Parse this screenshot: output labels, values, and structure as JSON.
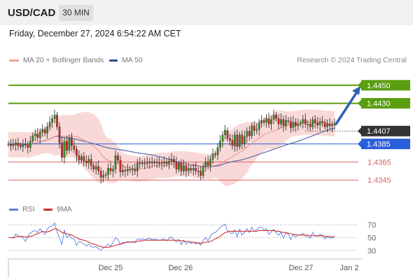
{
  "header": {
    "symbol": "USD/CAD",
    "timeframe": "30 MIN",
    "datetime": "Friday, December 27, 2024 6:54:22 AM CET"
  },
  "legend": {
    "ma20": "MA 20 + Bollinger Bands",
    "ma50": "MA 50",
    "credit": "Research © 2024 Trading Central"
  },
  "rsi_legend": {
    "rsi": "RSI",
    "ma9": "9MA"
  },
  "colors": {
    "resistance": "#5a9e0f",
    "current": "#333333",
    "pivot": "#2b5fd9",
    "support": "#e06060",
    "candle_up": "#3a8a1e",
    "candle_down": "#c62828",
    "ma50": "#5a6aa8",
    "bollinger": "#f7c9c6",
    "rsi": "#5b7fe0",
    "rsi_ma": "#d32f2f"
  },
  "chart_data": [
    {
      "type": "candlestick",
      "title": "USD/CAD",
      "timeframe": "30 MIN",
      "ylim": [
        1.4325,
        1.447
      ],
      "x_ticks": [
        "Dec 25",
        "Dec 26",
        "Dec 27",
        "Jan 2"
      ],
      "levels": [
        {
          "label": "1.4450",
          "value": 1.445,
          "kind": "resistance",
          "style": "box"
        },
        {
          "label": "1.4430",
          "value": 1.443,
          "kind": "resistance",
          "style": "box"
        },
        {
          "label": "1.4407",
          "value": 1.4407,
          "kind": "current",
          "style": "box"
        },
        {
          "label": "1.4385",
          "value": 1.4385,
          "kind": "pivot",
          "style": "box"
        },
        {
          "label": "1.4365",
          "value": 1.4365,
          "kind": "support",
          "style": "text"
        },
        {
          "label": "1.4345",
          "value": 1.4345,
          "kind": "support",
          "style": "text"
        }
      ],
      "forecast_arrow": {
        "from": 1.4407,
        "to": 1.445
      },
      "close": [
        1.4385,
        1.4383,
        1.4384,
        1.4386,
        1.4383,
        1.4382,
        1.4385,
        1.4384,
        1.4381,
        1.4388,
        1.4394,
        1.4396,
        1.4392,
        1.4398,
        1.4401,
        1.4397,
        1.4404,
        1.4409,
        1.4413,
        1.4417,
        1.4404,
        1.4386,
        1.437,
        1.4388,
        1.4378,
        1.4392,
        1.4383,
        1.4379,
        1.4372,
        1.4367,
        1.4371,
        1.4366,
        1.4364,
        1.4368,
        1.4361,
        1.4357,
        1.436,
        1.4355,
        1.4348,
        1.435,
        1.4351,
        1.4358,
        1.4355,
        1.4357,
        1.4372,
        1.4367,
        1.4354,
        1.4356,
        1.4355,
        1.4357,
        1.4356,
        1.4357,
        1.4355,
        1.4364,
        1.4363,
        1.4364,
        1.4363,
        1.4364,
        1.4365,
        1.4364,
        1.4365,
        1.4364,
        1.4363,
        1.4364,
        1.4365,
        1.4363,
        1.4366,
        1.4368,
        1.4365,
        1.4357,
        1.4363,
        1.4355,
        1.4361,
        1.4355,
        1.4358,
        1.4356,
        1.4358,
        1.4355,
        1.4355,
        1.435,
        1.436,
        1.4365,
        1.4361,
        1.4368,
        1.4374,
        1.4373,
        1.4381,
        1.4388,
        1.4395,
        1.44,
        1.4391,
        1.4389,
        1.4383,
        1.4395,
        1.4382,
        1.4395,
        1.4385,
        1.4393,
        1.4399,
        1.4394,
        1.4405,
        1.44,
        1.4401,
        1.4408,
        1.4411,
        1.4409,
        1.4413,
        1.4407,
        1.4412,
        1.4417,
        1.4413,
        1.4407,
        1.4412,
        1.4405,
        1.4411,
        1.441,
        1.4403,
        1.4409,
        1.4405,
        1.4407,
        1.4408,
        1.4412,
        1.4407,
        1.4407,
        1.4404,
        1.4412,
        1.4408,
        1.4406,
        1.441,
        1.4409,
        1.4404,
        1.4407,
        1.4405,
        1.4406,
        1.4407
      ],
      "indicators": [
        "MA 20 + Bollinger Bands",
        "MA 50"
      ]
    },
    {
      "type": "line",
      "title": "RSI",
      "ylim": [
        20,
        80
      ],
      "y_ticks": [
        70,
        50,
        30
      ],
      "series": [
        {
          "name": "RSI",
          "values": [
            50,
            50,
            49,
            56,
            53,
            51,
            50,
            44,
            52,
            57,
            60,
            61,
            58,
            64,
            59,
            55,
            64,
            67,
            68,
            73,
            58,
            50,
            39,
            62,
            50,
            54,
            49,
            48,
            38,
            44,
            43,
            40,
            37,
            40,
            36,
            35,
            36,
            33,
            30,
            34,
            36,
            40,
            37,
            42,
            50,
            47,
            39,
            43,
            42,
            44,
            43,
            44,
            42,
            48,
            47,
            48,
            47,
            48,
            49,
            47,
            48,
            47,
            46,
            47,
            48,
            45,
            49,
            51,
            47,
            43,
            47,
            39,
            46,
            40,
            44,
            41,
            43,
            40,
            42,
            38,
            46,
            50,
            45,
            53,
            57,
            58,
            62,
            66,
            69,
            71,
            61,
            58,
            56,
            62,
            51,
            63,
            54,
            58,
            64,
            58,
            66,
            60,
            62,
            66,
            66,
            62,
            64,
            55,
            59,
            63,
            58,
            54,
            58,
            49,
            57,
            56,
            47,
            55,
            51,
            54,
            54,
            57,
            52,
            52,
            49,
            58,
            53,
            52,
            55,
            54,
            48,
            51,
            49,
            50,
            52
          ]
        },
        {
          "name": "9MA",
          "values": [
            50,
            50,
            50,
            51,
            52,
            52,
            52,
            51,
            51,
            52,
            53,
            55,
            56,
            58,
            60,
            59,
            59,
            60,
            62,
            64,
            63,
            61,
            58,
            57,
            56,
            55,
            54,
            52,
            50,
            48,
            47,
            46,
            45,
            43,
            41,
            40,
            39,
            37,
            36,
            35,
            35,
            35,
            36,
            37,
            38,
            39,
            40,
            41,
            42,
            43,
            43,
            43,
            44,
            44,
            45,
            45,
            46,
            46,
            46,
            46,
            46,
            46,
            46,
            46,
            46,
            46,
            46,
            46,
            46,
            46,
            46,
            45,
            45,
            44,
            44,
            43,
            43,
            42,
            42,
            41,
            42,
            43,
            43,
            44,
            46,
            48,
            50,
            52,
            55,
            58,
            59,
            60,
            60,
            60,
            60,
            60,
            60,
            60,
            60,
            60,
            60,
            60,
            60,
            61,
            61,
            61,
            61,
            61,
            61,
            61,
            60,
            60,
            59,
            58,
            58,
            57,
            56,
            55,
            55,
            54,
            54,
            54,
            54,
            54,
            53,
            53,
            53,
            53,
            53,
            53,
            52,
            52,
            52,
            51,
            51
          ]
        }
      ]
    }
  ]
}
